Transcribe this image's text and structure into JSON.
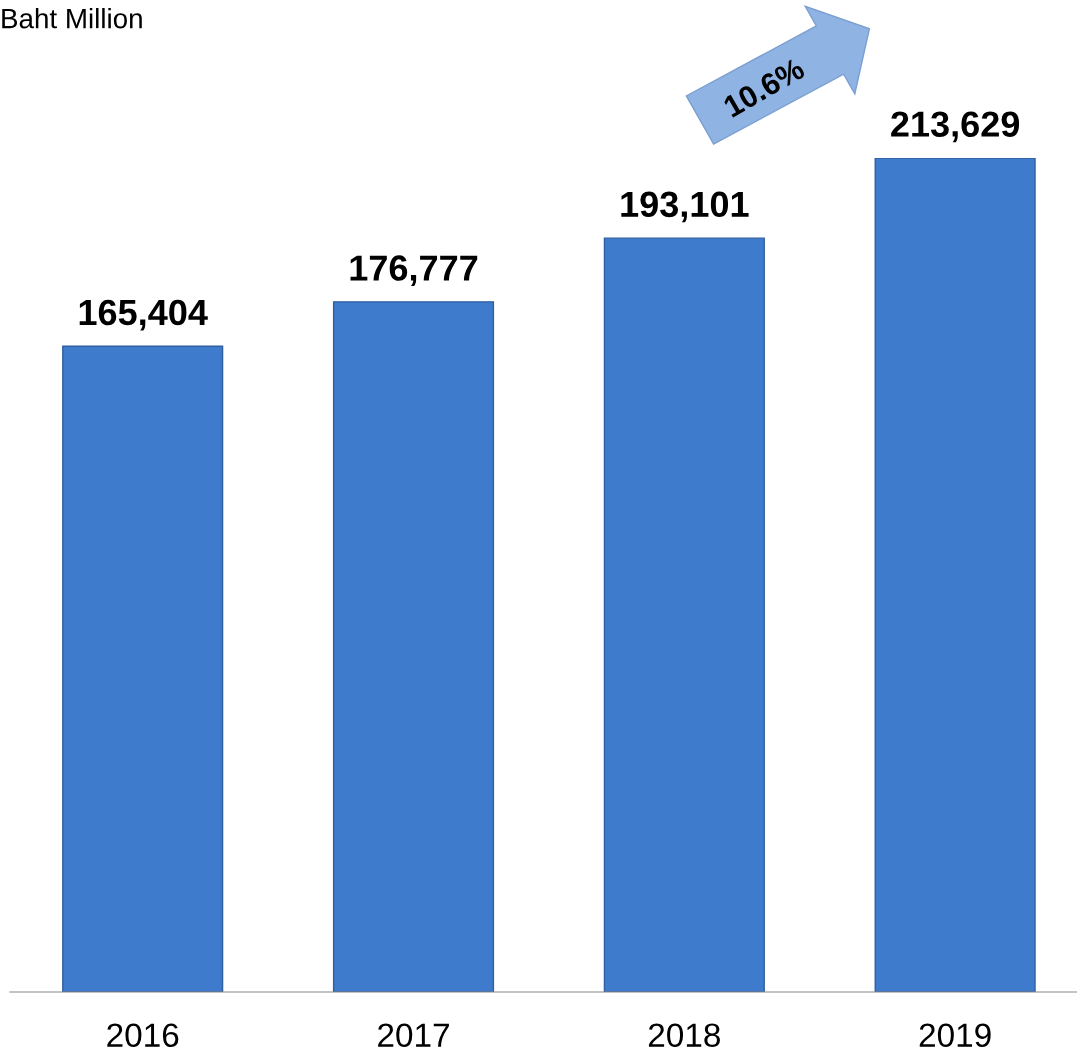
{
  "chart_data": {
    "type": "bar",
    "categories": [
      "2016",
      "2017",
      "2018",
      "2019"
    ],
    "values": [
      165404,
      176777,
      193101,
      213629
    ],
    "value_labels": [
      "165,404",
      "176,777",
      "193,101",
      "213,629"
    ],
    "color": "#3e7bcc",
    "tick_labels": "x",
    "grid": false,
    "annotations": [
      "Baht Million",
      "10.6%"
    ]
  }
}
